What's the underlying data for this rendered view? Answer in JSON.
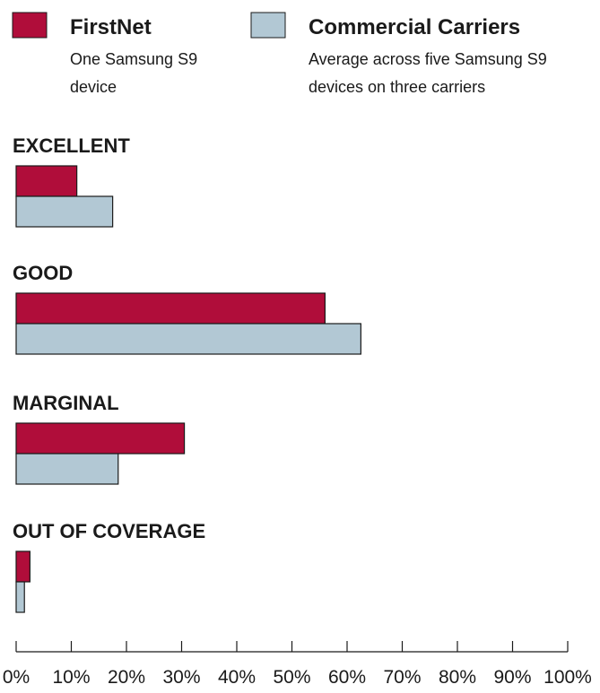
{
  "chart_data": {
    "type": "bar",
    "orientation": "horizontal",
    "categories": [
      "EXCELLENT",
      "GOOD",
      "MARGINAL",
      "OUT OF COVERAGE"
    ],
    "series": [
      {
        "name": "FirstNet",
        "description": [
          "One Samsung S9",
          "device"
        ],
        "color": "#b00d3a",
        "values": [
          11,
          56,
          30.5,
          2.5
        ]
      },
      {
        "name": "Commercial Carriers",
        "description": [
          "Average across five Samsung S9",
          "devices on three carriers"
        ],
        "color": "#b2c8d4",
        "values": [
          17.5,
          62.5,
          18.5,
          1.5
        ]
      }
    ],
    "x_ticks": [
      "0%",
      "10%",
      "20%",
      "30%",
      "40%",
      "50%",
      "60%",
      "70%",
      "80%",
      "90%",
      "100%"
    ],
    "xlim": [
      0,
      100
    ],
    "legend": "top",
    "grid": false,
    "outline_color": "#1a1a1a"
  }
}
